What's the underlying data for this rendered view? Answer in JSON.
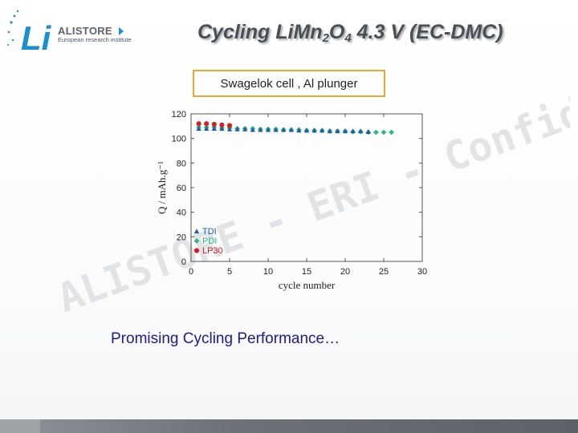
{
  "logo": {
    "name": "ALISTORE",
    "subtitle": "European research institute",
    "mark": "Li",
    "accent_color": "#1a8fd0"
  },
  "slide": {
    "title_parts": [
      "Cycling Li",
      "Mn",
      "2",
      "O",
      "4",
      " 4.3 V (EC-DMC)"
    ],
    "subtitle": "Swagelok cell , Al plunger",
    "caption": "Promising Cycling Performance…",
    "watermark": "ALISTORE - ERI - Confidential"
  },
  "chart_data": {
    "type": "scatter",
    "xlabel": "cycle number",
    "ylabel": "Q / mAh.g⁻¹",
    "xlim": [
      0,
      30
    ],
    "ylim": [
      0,
      120
    ],
    "xticks": [
      0,
      5,
      10,
      15,
      20,
      25,
      30
    ],
    "yticks": [
      0,
      20,
      40,
      60,
      80,
      100,
      120
    ],
    "legend_position": "bottom-left",
    "series": [
      {
        "name": "TDI",
        "color": "#1f5fa8",
        "marker": "triangle",
        "x": [
          1,
          2,
          3,
          4,
          5,
          6,
          7,
          8,
          9,
          10,
          11,
          12,
          13,
          14,
          15,
          16,
          17,
          18,
          19,
          20,
          21,
          22,
          23
        ],
        "y": [
          108,
          108,
          108,
          108,
          107.5,
          107.5,
          107.5,
          107,
          107,
          107,
          107,
          107,
          107,
          106.5,
          106.5,
          106.5,
          106.5,
          106,
          106,
          106,
          106,
          106,
          105.5
        ]
      },
      {
        "name": "PDI",
        "color": "#2eb87a",
        "marker": "diamond",
        "x": [
          1,
          2,
          3,
          4,
          5,
          6,
          7,
          8,
          9,
          10,
          11,
          12,
          13,
          14,
          15,
          16,
          17,
          18,
          19,
          20,
          21,
          22,
          23,
          24,
          25,
          26
        ],
        "y": [
          109,
          109,
          109,
          108.5,
          108.5,
          108,
          108,
          108,
          107.5,
          107.5,
          107.5,
          107,
          107,
          107,
          106.5,
          106.5,
          106.5,
          106,
          106,
          106,
          105.5,
          105.5,
          105,
          105,
          105,
          105
        ]
      },
      {
        "name": "LP30",
        "color": "#d42020",
        "marker": "circle",
        "x": [
          1,
          2,
          3,
          4,
          5
        ],
        "y": [
          112,
          112,
          111.5,
          111,
          110.5
        ]
      }
    ]
  }
}
